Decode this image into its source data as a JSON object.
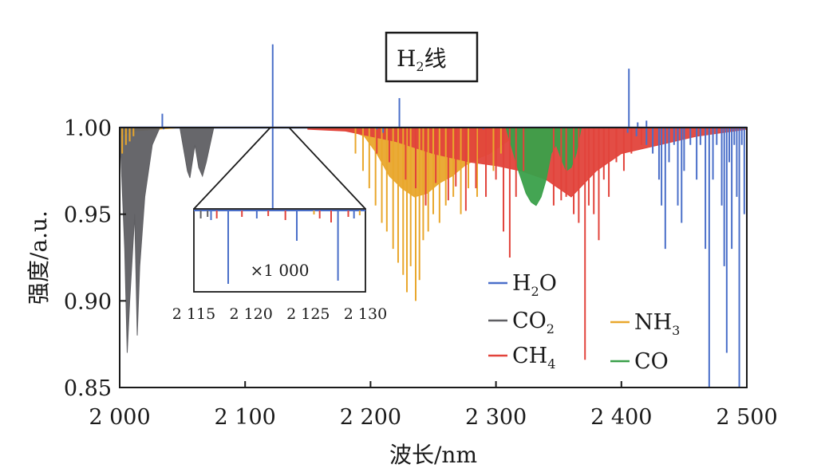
{
  "chart_data": {
    "type": "line",
    "title": "H₂线",
    "title_parts": {
      "main": "H",
      "sub": "2",
      "suffix": "线"
    },
    "xlabel": "波长/nm",
    "ylabel": "强度/a.u.",
    "xlim": [
      2000,
      2500
    ],
    "ylim": [
      0.85,
      1.0
    ],
    "x_ticks": [
      2000,
      2100,
      2200,
      2300,
      2400,
      2500
    ],
    "x_tick_labels": [
      "2 000",
      "2 100",
      "2 200",
      "2 300",
      "2 400",
      "2 500"
    ],
    "y_ticks": [
      0.85,
      0.9,
      0.95,
      1.0
    ],
    "y_tick_labels": [
      "0.85",
      "0.90",
      "0.95",
      "1.00"
    ],
    "grid": false,
    "legend_position": "bottom-center",
    "series": [
      {
        "name": "H₂O",
        "label_main": "H",
        "label_sub": "2",
        "label_tail": "O",
        "color": "#4a6fc9",
        "lines": [
          [
            2000,
            0.998
          ],
          [
            2035,
            0.999
          ],
          [
            2205,
            0.999
          ],
          [
            2210,
            0.997
          ],
          [
            2290,
            0.999
          ],
          [
            2405,
            0.997
          ],
          [
            2412,
            0.995
          ],
          [
            2420,
            0.99
          ],
          [
            2425,
            0.985
          ],
          [
            2430,
            0.97
          ],
          [
            2432,
            0.955
          ],
          [
            2435,
            0.93
          ],
          [
            2438,
            0.98
          ],
          [
            2442,
            0.99
          ],
          [
            2445,
            0.955
          ],
          [
            2448,
            0.945
          ],
          [
            2450,
            0.975
          ],
          [
            2455,
            0.99
          ],
          [
            2460,
            0.97
          ],
          [
            2463,
            0.99
          ],
          [
            2467,
            0.93
          ],
          [
            2470,
            0.85
          ],
          [
            2473,
            0.97
          ],
          [
            2476,
            0.99
          ],
          [
            2480,
            0.955
          ],
          [
            2482,
            0.92
          ],
          [
            2484,
            0.87
          ],
          [
            2486,
            0.98
          ],
          [
            2488,
            0.93
          ],
          [
            2490,
            0.99
          ],
          [
            2492,
            0.96
          ],
          [
            2494,
            0.85
          ],
          [
            2496,
            0.99
          ],
          [
            2498,
            0.95
          ]
        ],
        "peaks": [
          [
            2034,
            1.008
          ],
          [
            2122,
            1.048
          ],
          [
            2223,
            1.017
          ],
          [
            2406,
            1.034
          ],
          [
            2413,
            1.003
          ],
          [
            2420,
            1.004
          ]
        ]
      },
      {
        "name": "CO₂",
        "label_main": "CO",
        "label_sub": "2",
        "label_tail": "",
        "color": "#5f5f63",
        "bands": [
          {
            "x": [
              2000,
              2004,
              2006,
              2008,
              2012,
              2014,
              2016,
              2020,
              2026,
              2032
            ],
            "y": [
              1.0,
              0.93,
              0.87,
              0.9,
              0.95,
              0.88,
              0.92,
              0.96,
              0.99,
              1.0
            ]
          },
          {
            "x": [
              2048,
              2054,
              2056,
              2060,
              2063,
              2066,
              2069,
              2075
            ],
            "y": [
              1.0,
              0.975,
              0.971,
              0.99,
              0.977,
              0.972,
              0.98,
              1.0
            ]
          }
        ]
      },
      {
        "name": "CH₄",
        "label_main": "CH",
        "label_sub": "4",
        "label_tail": "",
        "color": "#e2433b",
        "band": {
          "x": [
            2150,
            2180,
            2200,
            2220,
            2250,
            2280,
            2300,
            2320,
            2340,
            2360,
            2380,
            2400,
            2430,
            2460,
            2500
          ],
          "y": [
            0.999,
            0.998,
            0.995,
            0.992,
            0.985,
            0.98,
            0.978,
            0.975,
            0.97,
            0.96,
            0.975,
            0.985,
            0.99,
            0.995,
            0.999
          ]
        },
        "lines": [
          [
            2205,
            0.985
          ],
          [
            2215,
            0.98
          ],
          [
            2228,
            0.97
          ],
          [
            2236,
            0.965
          ],
          [
            2244,
            0.955
          ],
          [
            2252,
            0.968
          ],
          [
            2262,
            0.958
          ],
          [
            2268,
            0.966
          ],
          [
            2276,
            0.952
          ],
          [
            2284,
            0.965
          ],
          [
            2292,
            0.96
          ],
          [
            2300,
            0.97
          ],
          [
            2306,
            0.94
          ],
          [
            2311,
            0.925
          ],
          [
            2316,
            0.96
          ],
          [
            2322,
            0.975
          ],
          [
            2346,
            0.955
          ],
          [
            2352,
            0.958
          ],
          [
            2356,
            0.96
          ],
          [
            2362,
            0.95
          ],
          [
            2366,
            0.945
          ],
          [
            2371,
            0.866
          ],
          [
            2374,
            0.955
          ],
          [
            2378,
            0.95
          ],
          [
            2382,
            0.935
          ],
          [
            2386,
            0.97
          ],
          [
            2390,
            0.96
          ],
          [
            2396,
            0.98
          ],
          [
            2402,
            0.975
          ],
          [
            2408,
            0.985
          ],
          [
            2416,
            0.99
          ]
        ]
      },
      {
        "name": "NH₃",
        "label_main": "NH",
        "label_sub": "3",
        "label_tail": "",
        "color": "#e9a72c",
        "band": {
          "x": [
            2000,
            2010,
            2030,
            2050,
            2150,
            2185,
            2195,
            2205,
            2215,
            2225,
            2235,
            2245,
            2255,
            2265,
            2275,
            2285,
            2295,
            2305,
            2315,
            2330
          ],
          "y": [
            0.995,
            0.998,
            0.999,
            1.0,
            1.0,
            0.998,
            0.995,
            0.985,
            0.972,
            0.965,
            0.96,
            0.962,
            0.968,
            0.972,
            0.978,
            0.982,
            0.985,
            0.99,
            0.995,
            1.0
          ]
        },
        "lines": [
          [
            2002,
            0.985
          ],
          [
            2005,
            0.99
          ],
          [
            2008,
            0.992
          ],
          [
            2011,
            0.995
          ],
          [
            2188,
            0.985
          ],
          [
            2194,
            0.975
          ],
          [
            2199,
            0.965
          ],
          [
            2204,
            0.955
          ],
          [
            2209,
            0.945
          ],
          [
            2213,
            0.94
          ],
          [
            2218,
            0.93
          ],
          [
            2222,
            0.922
          ],
          [
            2226,
            0.915
          ],
          [
            2229,
            0.905
          ],
          [
            2232,
            0.92
          ],
          [
            2236,
            0.9
          ],
          [
            2239,
            0.912
          ],
          [
            2242,
            0.935
          ],
          [
            2246,
            0.94
          ],
          [
            2250,
            0.95
          ],
          [
            2255,
            0.945
          ],
          [
            2260,
            0.955
          ],
          [
            2266,
            0.96
          ],
          [
            2272,
            0.95
          ],
          [
            2278,
            0.965
          ],
          [
            2285,
            0.96
          ],
          [
            2292,
            0.97
          ],
          [
            2298,
            0.975
          ],
          [
            2304,
            0.985
          ]
        ]
      },
      {
        "name": "CO",
        "label_main": "CO",
        "label_sub": "",
        "label_tail": "",
        "color": "#3aa04a",
        "band": {
          "x": [
            2308,
            2312,
            2318,
            2324,
            2328,
            2332,
            2336,
            2340,
            2344,
            2348,
            2352,
            2356,
            2360,
            2364,
            2368
          ],
          "y": [
            1.0,
            0.99,
            0.975,
            0.962,
            0.957,
            0.955,
            0.96,
            0.97,
            0.985,
            0.99,
            0.982,
            0.975,
            0.977,
            0.985,
            1.0
          ]
        }
      }
    ],
    "inset": {
      "xlim": [
        2115,
        2130
      ],
      "x_ticks": [
        2115,
        2120,
        2125,
        2130
      ],
      "x_tick_labels": [
        "2 115",
        "2 120",
        "2 125",
        "2 130"
      ],
      "scale_label": "×1 000",
      "lines": [
        {
          "series": "H₂O",
          "x": 2118,
          "depth": 0.92
        },
        {
          "series": "H₂O",
          "x": 2124,
          "depth": 0.38
        },
        {
          "series": "H₂O",
          "x": 2127.6,
          "depth": 0.88
        },
        {
          "series": "H₂O",
          "x": 2116.5,
          "depth": 0.12
        },
        {
          "series": "H₂O",
          "x": 2120.5,
          "depth": 0.1
        },
        {
          "series": "H₂O",
          "x": 2129,
          "depth": 0.1
        },
        {
          "series": "CO₂",
          "x": 2115.6,
          "depth": 0.1
        },
        {
          "series": "CO₂",
          "x": 2116.2,
          "depth": 0.08
        },
        {
          "series": "CH₄",
          "x": 2117,
          "depth": 0.1
        },
        {
          "series": "CH₄",
          "x": 2119.2,
          "depth": 0.08
        },
        {
          "series": "CH₄",
          "x": 2121.5,
          "depth": 0.07
        },
        {
          "series": "CH₄",
          "x": 2123,
          "depth": 0.12
        },
        {
          "series": "CH₄",
          "x": 2126,
          "depth": 0.1
        },
        {
          "series": "CH₄",
          "x": 2127,
          "depth": 0.15
        },
        {
          "series": "CH₄",
          "x": 2128.5,
          "depth": 0.08
        },
        {
          "series": "NH₃",
          "x": 2125.5,
          "depth": 0.05
        },
        {
          "series": "NH₃",
          "x": 2129.5,
          "depth": 0.06
        }
      ]
    }
  }
}
